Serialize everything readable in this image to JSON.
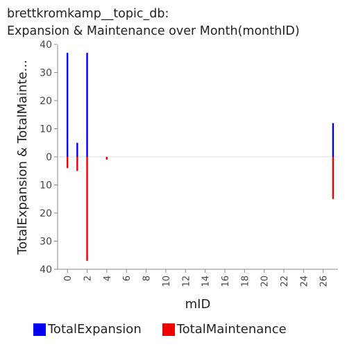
{
  "chart_data": {
    "type": "bar",
    "title_line1": "brettkromkamp__topic_db:",
    "title_line2": "Expansion & Maintenance over Month(monthID)",
    "xlabel": "mID",
    "ylabel": "TotalExpansion & TotalMainte...",
    "x_ticks": [
      0,
      2,
      4,
      6,
      8,
      10,
      12,
      14,
      16,
      18,
      20,
      22,
      24,
      26
    ],
    "xlim": [
      -1,
      27.5
    ],
    "y_ticks": [
      40,
      30,
      20,
      10,
      0,
      10,
      20,
      30,
      40
    ],
    "ylim": [
      -40,
      40
    ],
    "grid": false,
    "legend_position": "bottom",
    "series": [
      {
        "name": "TotalExpansion",
        "color": "#0000ee",
        "direction": "up",
        "points": [
          {
            "x": 0,
            "y": 37
          },
          {
            "x": 1,
            "y": 5
          },
          {
            "x": 2,
            "y": 37
          },
          {
            "x": 27,
            "y": 12
          }
        ]
      },
      {
        "name": "TotalMaintenance",
        "color": "#ee0000",
        "direction": "down",
        "points": [
          {
            "x": 0,
            "y": 4
          },
          {
            "x": 1,
            "y": 5
          },
          {
            "x": 2,
            "y": 37
          },
          {
            "x": 4,
            "y": 1
          },
          {
            "x": 27,
            "y": 15
          }
        ]
      }
    ]
  }
}
